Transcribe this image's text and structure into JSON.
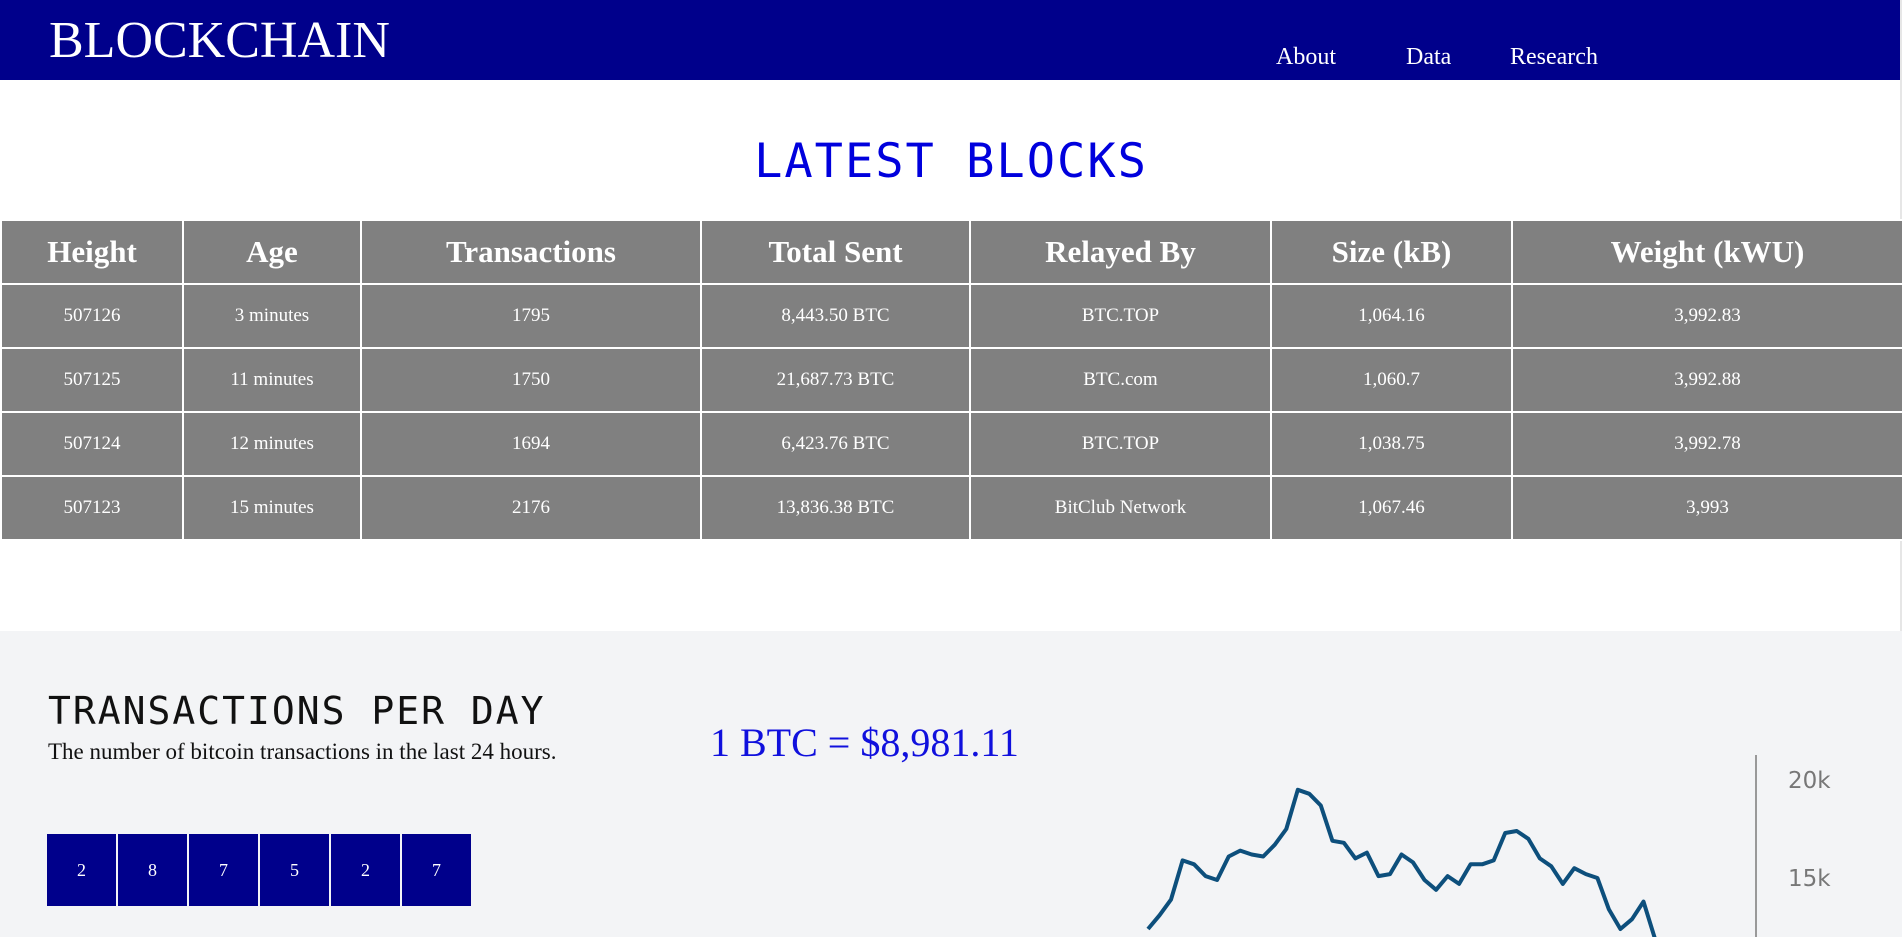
{
  "header": {
    "brand": "BLOCKCHAIN",
    "nav": [
      {
        "label": "About"
      },
      {
        "label": "Data"
      },
      {
        "label": "Research"
      }
    ]
  },
  "blocks": {
    "title": "LATEST BLOCKS",
    "columns": [
      "Height",
      "Age",
      "Transactions",
      "Total Sent",
      "Relayed By",
      "Size (kB)",
      "Weight (kWU)"
    ],
    "rows": [
      [
        "507126",
        "3 minutes",
        "1795",
        "8,443.50 BTC",
        "BTC.TOP",
        "1,064.16",
        "3,992.83"
      ],
      [
        "507125",
        "11 minutes",
        "1750",
        "21,687.73 BTC",
        "BTC.com",
        "1,060.7",
        "3,992.88"
      ],
      [
        "507124",
        "12 minutes",
        "1694",
        "6,423.76 BTC",
        "BTC.TOP",
        "1,038.75",
        "3,992.78"
      ],
      [
        "507123",
        "15 minutes",
        "2176",
        "13,836.38 BTC",
        "BitClub Network",
        "1,067.46",
        "3,993"
      ]
    ]
  },
  "transactions": {
    "title": "TRANSACTIONS PER DAY",
    "subtitle": "The number of bitcoin transactions in the last 24 hours.",
    "price": "1 BTC = $8,981.11",
    "digits": [
      "2",
      "8",
      "7",
      "5",
      "2",
      "7"
    ]
  },
  "colors": {
    "header_bg": "#00008b",
    "table_bg": "#808080",
    "title_blue": "#0000dd",
    "line": "#0d4f7c"
  },
  "chart_data": {
    "type": "line",
    "title": "",
    "xlabel": "",
    "ylabel": "",
    "y_tick_labels": [
      "20k",
      "15k"
    ],
    "y_ticks": [
      20000,
      15000
    ],
    "ylim": [
      13000,
      21000
    ],
    "series": [
      {
        "name": "Transactions per day",
        "values": [
          12500,
          13200,
          14000,
          16000,
          15800,
          15200,
          15000,
          16200,
          16500,
          16300,
          16200,
          16800,
          17600,
          19600,
          19400,
          18800,
          17000,
          16900,
          16100,
          16400,
          15200,
          15300,
          16300,
          15900,
          15000,
          14500,
          15200,
          14800,
          15800,
          15800,
          16000,
          17400,
          17500,
          17100,
          16100,
          15700,
          14800,
          15600,
          15300,
          15100,
          13500,
          12500,
          13000,
          13900,
          12000
        ]
      }
    ]
  }
}
